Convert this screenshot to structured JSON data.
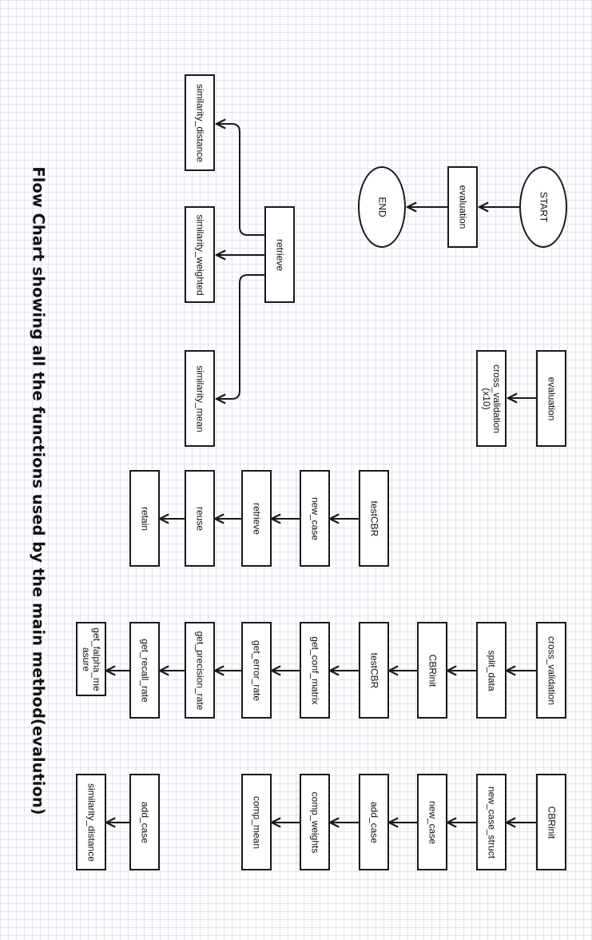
{
  "title": "Flow Chart showing all the functions used by the main method(evalution)",
  "colors": {
    "grid": "#e3e3f3",
    "stroke": "#1a1a1a",
    "background": "#ffffff"
  },
  "diagrams": {
    "main": {
      "start": "START",
      "step": "evaluation",
      "end": "END"
    },
    "evaluation": {
      "root": "evaluation",
      "calls": [
        "cross_validation (x10)"
      ]
    },
    "retrieve": {
      "root": "retrieve",
      "calls": [
        "similarity_distance",
        "similarity_weighted",
        "similarity_mean"
      ]
    },
    "testCBR": {
      "root": "testCBR",
      "calls": [
        "new_case",
        "retrieve",
        "reuse",
        "retain"
      ]
    },
    "cross_validation": {
      "root": "cross_validation",
      "calls": [
        "split_data",
        "CBRinit",
        "testCBR",
        "get_conf_matrix",
        "get_error_rate",
        "get_precision_rate",
        "get_recall_rate",
        "get_falpha_measure"
      ]
    },
    "CBRinit": {
      "root": "CBRinit",
      "calls": [
        "new_case_struct",
        "new_case",
        "add_case",
        "comp_weights",
        "comp_mean"
      ]
    },
    "add_case": {
      "root": "add_case",
      "calls": [
        "similarity_distance"
      ]
    }
  }
}
